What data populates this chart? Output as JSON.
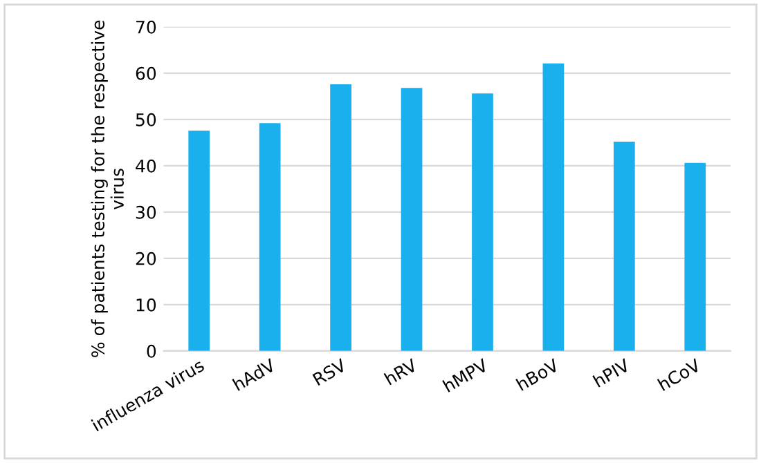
{
  "chart_data": {
    "type": "bar",
    "ylabel": "% of patients testing for the respective virus",
    "categories": [
      "influenza virus",
      "hAdV",
      "RSV",
      "hRV",
      "hMPV",
      "hBoV",
      "hPIV",
      "hCoV"
    ],
    "values": [
      47.6,
      49.2,
      57.6,
      56.8,
      55.6,
      62.1,
      45.2,
      40.6
    ],
    "color": "#1ab0ed",
    "ylim": [
      0,
      70
    ],
    "yticks": [
      0,
      10,
      20,
      30,
      40,
      50,
      60,
      70
    ],
    "grid": "y",
    "legend": false
  }
}
